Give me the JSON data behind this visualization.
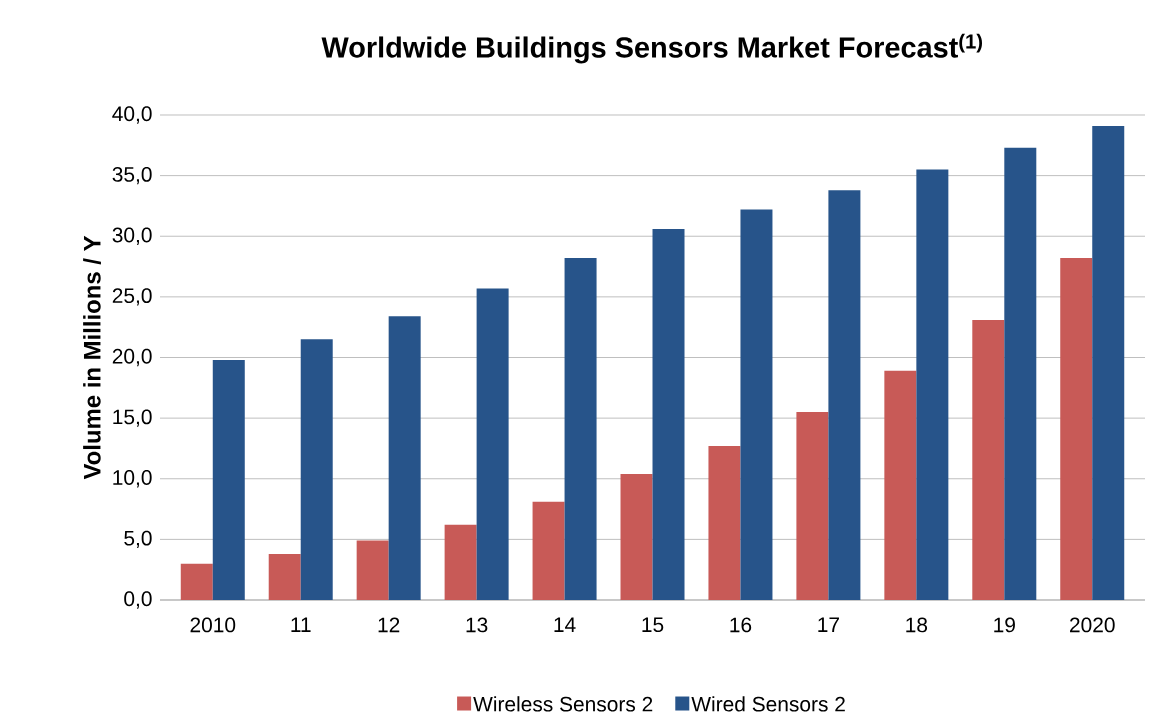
{
  "chart_data": {
    "type": "bar",
    "title": "Worldwide Buildings Sensors Market Forecast$^{(1)}$",
    "ylabel": "Volume in Millions / Y",
    "categories": [
      "2010",
      "11",
      "12",
      "13",
      "14",
      "15",
      "16",
      "17",
      "18",
      "19",
      "2020"
    ],
    "series": [
      {
        "name": "Wireless Sensors 2",
        "color": "#c85a57",
        "values": [
          3.0,
          3.8,
          4.9,
          6.2,
          8.1,
          10.4,
          12.7,
          15.5,
          18.9,
          23.1,
          28.2
        ]
      },
      {
        "name": "Wired Sensors 2",
        "color": "#27548a",
        "values": [
          19.8,
          21.5,
          23.4,
          25.7,
          28.2,
          30.6,
          32.2,
          33.8,
          35.5,
          37.3,
          39.1
        ]
      }
    ],
    "ylim": [
      0,
      40
    ],
    "yticks": [
      {
        "value": 0,
        "label": "0,0"
      },
      {
        "value": 5,
        "label": "5,0"
      },
      {
        "value": 10,
        "label": "10,0"
      },
      {
        "value": 15,
        "label": "15,0"
      },
      {
        "value": 20,
        "label": "20,0"
      },
      {
        "value": 25,
        "label": "25,0"
      },
      {
        "value": 30,
        "label": "30,0"
      },
      {
        "value": 35,
        "label": "35,0"
      },
      {
        "value": 40,
        "label": "40,0"
      }
    ],
    "grid": "y",
    "legend": "bottom"
  }
}
